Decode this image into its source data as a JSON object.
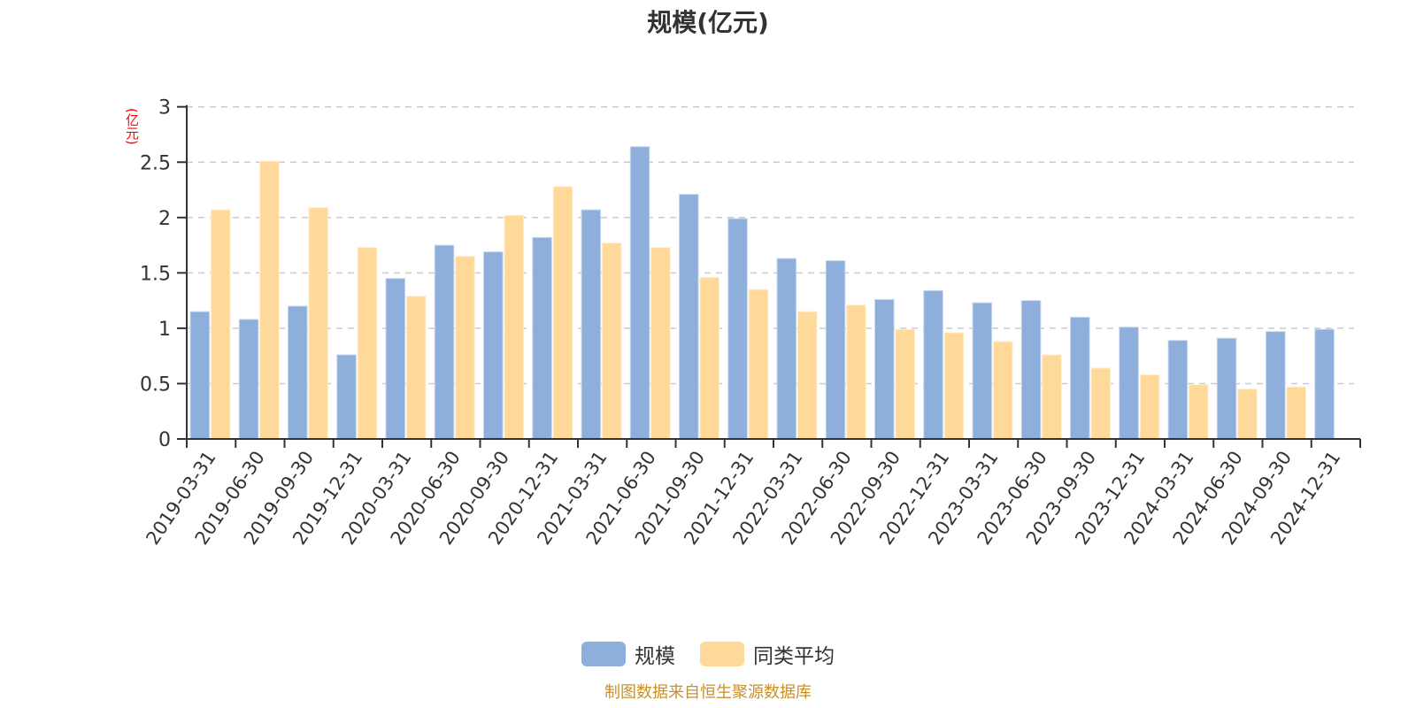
{
  "title": "规模(亿元)",
  "y_unit_label": "(亿元)",
  "legend": [
    {
      "label": "规模",
      "color": "#8eaedb"
    },
    {
      "label": "同类平均",
      "color": "#ffd99a"
    }
  ],
  "footer": "制图数据来自恒生聚源数据库",
  "chart_data": {
    "type": "bar",
    "title": "规模(亿元)",
    "xlabel": "",
    "ylabel": "(亿元)",
    "ylim": [
      0,
      3
    ],
    "yticks": [
      0,
      0.5,
      1,
      1.5,
      2,
      2.5,
      3
    ],
    "grid": true,
    "legend_position": "bottom",
    "categories": [
      "2019-03-31",
      "2019-06-30",
      "2019-09-30",
      "2019-12-31",
      "2020-03-31",
      "2020-06-30",
      "2020-09-30",
      "2020-12-31",
      "2021-03-31",
      "2021-06-30",
      "2021-09-30",
      "2021-12-31",
      "2022-03-31",
      "2022-06-30",
      "2022-09-30",
      "2022-12-31",
      "2023-03-31",
      "2023-06-30",
      "2023-09-30",
      "2023-12-31",
      "2024-03-31",
      "2024-06-30",
      "2024-09-30",
      "2024-12-31"
    ],
    "series": [
      {
        "name": "规模",
        "color": "#8eaedb",
        "values": [
          1.15,
          1.08,
          1.2,
          0.76,
          1.45,
          1.75,
          1.69,
          1.82,
          2.07,
          2.64,
          2.21,
          1.99,
          1.63,
          1.61,
          1.26,
          1.34,
          1.23,
          1.25,
          1.1,
          1.01,
          0.89,
          0.91,
          0.97,
          0.99
        ]
      },
      {
        "name": "同类平均",
        "color": "#ffd99a",
        "values": [
          2.07,
          2.51,
          2.09,
          1.73,
          1.29,
          1.65,
          2.02,
          2.28,
          1.77,
          1.73,
          1.46,
          1.35,
          1.15,
          1.21,
          0.99,
          0.96,
          0.88,
          0.76,
          0.64,
          0.58,
          0.49,
          0.45,
          0.47,
          null
        ]
      }
    ]
  }
}
